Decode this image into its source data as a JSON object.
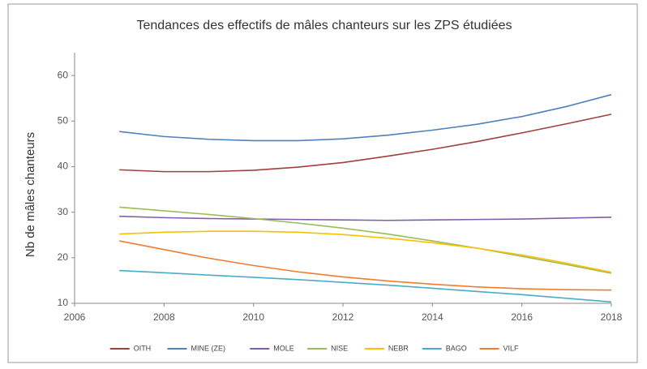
{
  "chart_data": {
    "type": "line",
    "title": "Tendances des effectifs de mâles chanteurs sur les ZPS étudiées",
    "y_label": "Nb de mâles chanteurs",
    "x": [
      2007,
      2008,
      2009,
      2010,
      2011,
      2012,
      2013,
      2014,
      2015,
      2016,
      2017,
      2018
    ],
    "series": [
      {
        "name": "OITH",
        "color": "#a0403e",
        "values": [
          39.3,
          38.9,
          38.9,
          39.2,
          39.9,
          40.9,
          42.3,
          43.8,
          45.5,
          47.4,
          49.4,
          51.5
        ]
      },
      {
        "name": "MINE (ZE)",
        "color": "#4f81bd",
        "values": [
          47.7,
          46.6,
          46.0,
          45.7,
          45.7,
          46.1,
          46.9,
          48.0,
          49.3,
          51.0,
          53.2,
          55.8
        ]
      },
      {
        "name": "MOLE",
        "color": "#7f5fa9",
        "values": [
          29.1,
          28.8,
          28.6,
          28.5,
          28.4,
          28.3,
          28.2,
          28.3,
          28.4,
          28.5,
          28.7,
          28.9
        ]
      },
      {
        "name": "NISE",
        "color": "#9bbb59",
        "values": [
          31.1,
          30.3,
          29.5,
          28.6,
          27.6,
          26.5,
          25.2,
          23.7,
          22.1,
          20.3,
          18.5,
          16.6
        ]
      },
      {
        "name": "NEBR",
        "color": "#f9c000",
        "values": [
          25.2,
          25.6,
          25.8,
          25.8,
          25.6,
          25.1,
          24.3,
          23.3,
          22.1,
          20.6,
          18.8,
          16.8
        ]
      },
      {
        "name": "BAGO",
        "color": "#4bacc6",
        "values": [
          17.2,
          16.7,
          16.2,
          15.7,
          15.2,
          14.6,
          14.0,
          13.3,
          12.6,
          11.9,
          11.1,
          10.3
        ]
      },
      {
        "name": "VILF",
        "color": "#f07c30",
        "values": [
          23.7,
          21.8,
          19.9,
          18.3,
          16.9,
          15.8,
          14.9,
          14.2,
          13.6,
          13.2,
          13.0,
          12.9
        ]
      }
    ],
    "xlim": [
      2006,
      2018
    ],
    "xticks": [
      2006,
      2008,
      2010,
      2012,
      2014,
      2016,
      2018
    ],
    "ylim": [
      10,
      65
    ],
    "yticks": [
      10,
      20,
      30,
      40,
      50,
      60
    ],
    "grid": false,
    "legend": "bottom"
  }
}
